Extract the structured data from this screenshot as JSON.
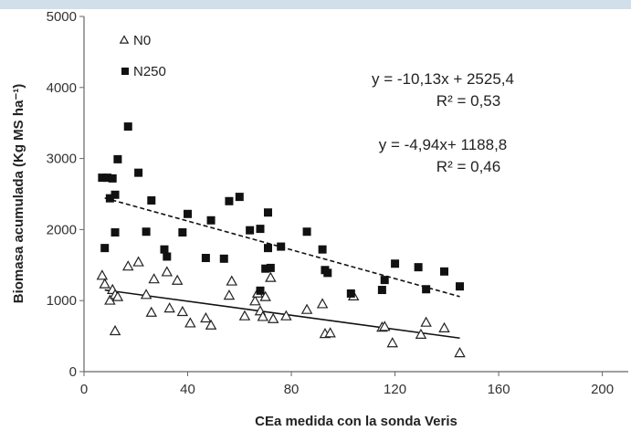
{
  "chart_data": {
    "type": "scatter",
    "xlabel": "CEa medida con la sonda Veris",
    "ylabel": "Biomasa acumulada (Kg MS ha⁻¹)",
    "xlim": [
      0,
      210
    ],
    "ylim": [
      0,
      5000
    ],
    "xticks": [
      "0",
      "40",
      "80",
      "120",
      "160",
      "200"
    ],
    "yticks": [
      "0",
      "1000",
      "2000",
      "3000",
      "4000",
      "5000"
    ],
    "grid": false,
    "legend_position": "top-left",
    "series": [
      {
        "name": "N0",
        "marker": "triangle-open",
        "color": "#222222",
        "points": [
          [
            7,
            1350
          ],
          [
            8,
            1230
          ],
          [
            10,
            1000
          ],
          [
            11,
            1150
          ],
          [
            12,
            1080
          ],
          [
            12,
            570
          ],
          [
            13,
            1050
          ],
          [
            17,
            1480
          ],
          [
            21,
            1540
          ],
          [
            24,
            1080
          ],
          [
            26,
            830
          ],
          [
            27,
            1300
          ],
          [
            32,
            1400
          ],
          [
            33,
            890
          ],
          [
            36,
            1280
          ],
          [
            38,
            840
          ],
          [
            41,
            680
          ],
          [
            47,
            750
          ],
          [
            49,
            650
          ],
          [
            56,
            1070
          ],
          [
            57,
            1270
          ],
          [
            62,
            780
          ],
          [
            66,
            990
          ],
          [
            67,
            1100
          ],
          [
            68,
            850
          ],
          [
            69,
            770
          ],
          [
            70,
            1050
          ],
          [
            72,
            1320
          ],
          [
            73,
            740
          ],
          [
            78,
            780
          ],
          [
            86,
            870
          ],
          [
            92,
            950
          ],
          [
            93,
            530
          ],
          [
            95,
            540
          ],
          [
            104,
            1060
          ],
          [
            115,
            620
          ],
          [
            116,
            630
          ],
          [
            119,
            400
          ],
          [
            130,
            520
          ],
          [
            132,
            690
          ],
          [
            139,
            610
          ],
          [
            145,
            260
          ]
        ]
      },
      {
        "name": "N250",
        "marker": "square-filled",
        "color": "#111111",
        "points": [
          [
            7,
            2730
          ],
          [
            8,
            1740
          ],
          [
            9,
            2730
          ],
          [
            10,
            2440
          ],
          [
            11,
            2720
          ],
          [
            12,
            1960
          ],
          [
            12,
            2490
          ],
          [
            13,
            2990
          ],
          [
            17,
            3450
          ],
          [
            21,
            2800
          ],
          [
            24,
            1970
          ],
          [
            26,
            2410
          ],
          [
            31,
            1720
          ],
          [
            32,
            1620
          ],
          [
            38,
            1960
          ],
          [
            40,
            2220
          ],
          [
            47,
            1600
          ],
          [
            49,
            2130
          ],
          [
            54,
            1590
          ],
          [
            56,
            2400
          ],
          [
            60,
            2460
          ],
          [
            64,
            1990
          ],
          [
            68,
            2010
          ],
          [
            68,
            1140
          ],
          [
            70,
            1450
          ],
          [
            71,
            1740
          ],
          [
            71,
            2240
          ],
          [
            72,
            1460
          ],
          [
            76,
            1760
          ],
          [
            86,
            1970
          ],
          [
            92,
            1720
          ],
          [
            93,
            1430
          ],
          [
            94,
            1390
          ],
          [
            103,
            1100
          ],
          [
            115,
            1150
          ],
          [
            116,
            1290
          ],
          [
            120,
            1520
          ],
          [
            129,
            1470
          ],
          [
            132,
            1160
          ],
          [
            139,
            1410
          ],
          [
            145,
            1200
          ]
        ]
      }
    ],
    "trendlines": [
      {
        "series": "N250",
        "style": "dashed",
        "slope": -10.13,
        "intercept": 2525.4,
        "x_range": [
          8,
          145
        ]
      },
      {
        "series": "N0",
        "style": "solid",
        "slope": -4.94,
        "intercept": 1188.8,
        "x_range": [
          8,
          145
        ]
      }
    ],
    "annotations": [
      {
        "line1": "y = -10,13x + 2525,4",
        "line2": "R² = 0,53"
      },
      {
        "line1": "y = -4,94x+ 1188,8",
        "line2": "R² = 0,46"
      }
    ]
  }
}
